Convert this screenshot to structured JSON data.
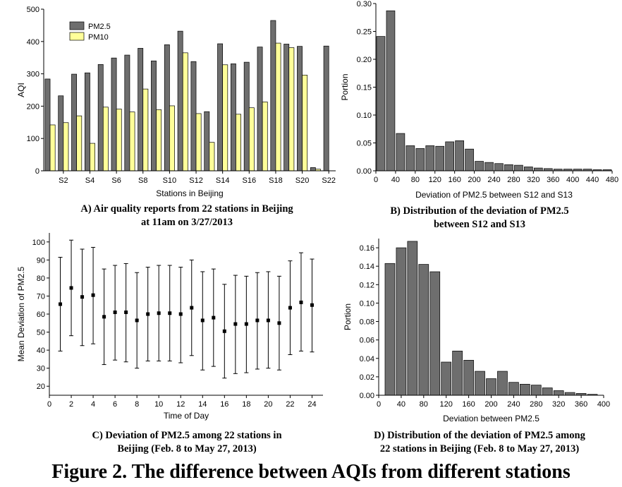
{
  "figure_title": "Figure 2. The difference between AQIs from different stations",
  "captions": {
    "a_line1": "A) Air quality reports from 22 stations in Beijing",
    "a_line2": "at 11am on 3/27/2013",
    "b_line1": "B) Distribution of the deviation of PM2.5",
    "b_line2": "between S12 and S13",
    "c_line1": "C) Deviation of PM2.5 among 22 stations in",
    "c_line2": "Beijing (Feb. 8 to May 27, 2013)",
    "d_line1": "D) Distribution of the deviation of PM2.5 among",
    "d_line2": "22 stations in Beijing (Feb. 8 to May 27, 2013)"
  },
  "colors": {
    "pm25": "#6e6e6e",
    "pm10": "#ffff99",
    "bar": "#6e6e6e"
  },
  "chart_data": [
    {
      "id": "A",
      "type": "bar",
      "xlabel": "Stations in Beijing",
      "ylabel": "AQI",
      "ylim": [
        0,
        500
      ],
      "yticks": [
        "0",
        "100",
        "200",
        "300",
        "400",
        "500"
      ],
      "xticks": [
        "S2",
        "S4",
        "S6",
        "S8",
        "S10",
        "S12",
        "S14",
        "S16",
        "S18",
        "S20",
        "S22"
      ],
      "legend": "top-left",
      "series": [
        {
          "name": "PM2.5",
          "values": [
            284,
            232,
            299,
            303,
            329,
            349,
            358,
            379,
            340,
            390,
            432,
            338,
            183,
            393,
            331,
            336,
            383,
            465,
            392,
            385,
            10,
            386
          ]
        },
        {
          "name": "PM10",
          "values": [
            142,
            149,
            170,
            85,
            197,
            191,
            182,
            253,
            189,
            201,
            365,
            177,
            88,
            328,
            175,
            195,
            213,
            395,
            381,
            296,
            5,
            null
          ]
        }
      ]
    },
    {
      "id": "B",
      "type": "bar",
      "xlabel": "Deviation of PM2.5 between S12 and S13",
      "ylabel": "Portion",
      "ylim": [
        0,
        0.3
      ],
      "xlim": [
        0,
        480
      ],
      "yticks": [
        "0.00",
        "0.05",
        "0.10",
        "0.15",
        "0.20",
        "0.25",
        "0.30"
      ],
      "xticks": [
        "0",
        "40",
        "80",
        "120",
        "160",
        "200",
        "240",
        "280",
        "320",
        "360",
        "400",
        "440",
        "480"
      ],
      "bin_width": 20,
      "values": [
        0.241,
        0.287,
        0.067,
        0.045,
        0.04,
        0.045,
        0.044,
        0.052,
        0.054,
        0.039,
        0.017,
        0.015,
        0.013,
        0.011,
        0.01,
        0.007,
        0.005,
        0.004,
        0.003,
        0.003,
        0.003,
        0.003,
        0.002,
        0.002
      ]
    },
    {
      "id": "C",
      "type": "scatter",
      "xlabel": "Time of Day",
      "ylabel": "Mean Deviation of PM2.5",
      "xlim": [
        0,
        25
      ],
      "ylim": [
        15,
        105
      ],
      "yticks": [
        "20",
        "30",
        "40",
        "50",
        "60",
        "70",
        "80",
        "90",
        "100"
      ],
      "xticks": [
        "0",
        "2",
        "4",
        "6",
        "8",
        "10",
        "12",
        "14",
        "16",
        "18",
        "20",
        "22",
        "24"
      ],
      "x": [
        1,
        2,
        3,
        4,
        5,
        6,
        7,
        8,
        9,
        10,
        11,
        12,
        13,
        14,
        15,
        16,
        17,
        18,
        19,
        20,
        21,
        22,
        23,
        24
      ],
      "y": [
        65.5,
        74.5,
        69.5,
        70.5,
        58.5,
        61,
        61,
        56.5,
        60,
        60.5,
        60.5,
        60,
        63.5,
        56.5,
        58,
        50.5,
        54.5,
        54.5,
        56.5,
        56.5,
        55,
        63.5,
        66.5,
        65
      ],
      "err_lo": [
        39.5,
        48,
        42.5,
        43.5,
        32,
        34.5,
        33.5,
        30,
        34,
        34,
        34,
        33,
        37,
        29,
        31,
        24.5,
        27,
        27.5,
        29.5,
        30,
        29,
        37.5,
        39.5,
        39
      ],
      "err_hi": [
        91.5,
        101,
        96,
        97,
        85,
        87,
        88,
        83,
        86,
        87,
        87,
        86,
        90,
        83.5,
        85,
        76.5,
        81.5,
        81,
        83,
        83.5,
        81,
        89.5,
        94,
        90.5
      ]
    },
    {
      "id": "D",
      "type": "bar",
      "xlabel": "Deviation between PM2.5",
      "ylabel": "Portion",
      "ylim": [
        0,
        0.17
      ],
      "xlim": [
        0,
        400
      ],
      "yticks": [
        "0.00",
        "0.02",
        "0.04",
        "0.06",
        "0.08",
        "0.10",
        "0.12",
        "0.14",
        "0.16"
      ],
      "xticks": [
        "0",
        "40",
        "80",
        "120",
        "160",
        "200",
        "240",
        "280",
        "320",
        "360",
        "400"
      ],
      "bin_width": 20,
      "values": [
        0.143,
        0.16,
        0.167,
        0.142,
        0.134,
        0.036,
        0.048,
        0.038,
        0.026,
        0.018,
        0.026,
        0.014,
        0.012,
        0.011,
        0.008,
        0.005,
        0.003,
        0.002,
        0.001
      ]
    }
  ]
}
